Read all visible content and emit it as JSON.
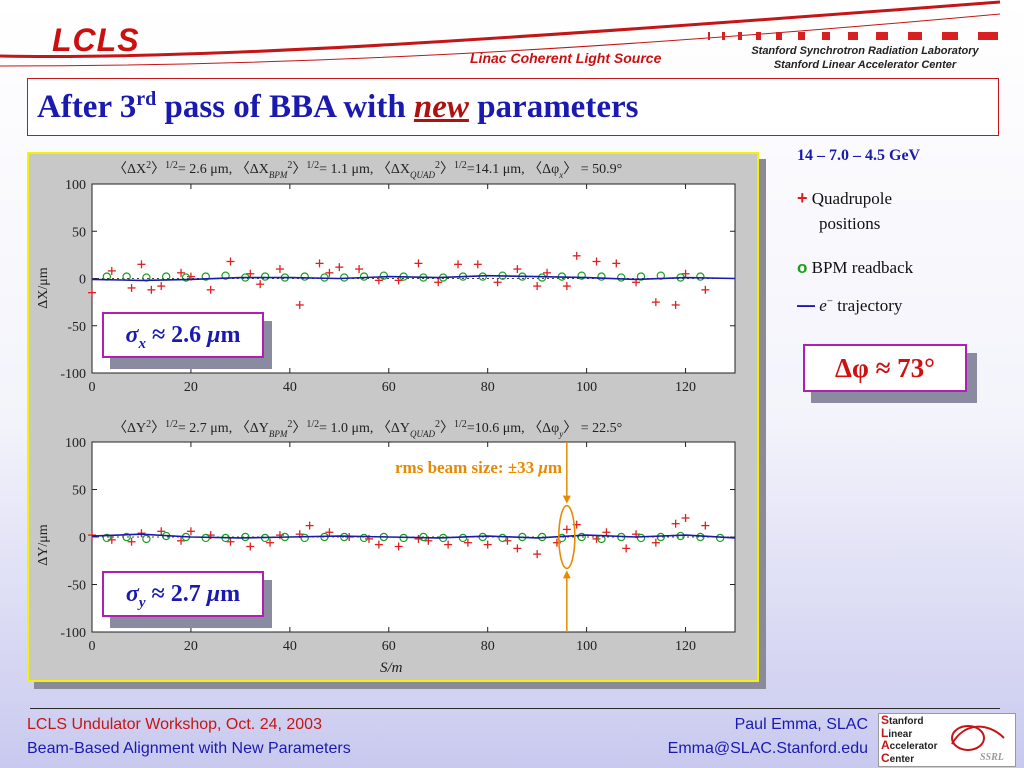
{
  "header": {
    "logo": "LCLS",
    "subtitle": "Linac Coherent Light Source",
    "lab_line1": "Stanford Synchrotron Radiation Laboratory",
    "lab_line2": "Stanford Linear Accelerator Center"
  },
  "title": {
    "part1": "After 3",
    "sup": "rd",
    "part2": " pass of BBA with ",
    "emph": "new",
    "part3": " parameters"
  },
  "legend": {
    "energy": "14 – 7.0  – 4.5 GeV",
    "items": [
      {
        "symbol": "+",
        "label": "Quadrupole",
        "label2": "positions",
        "color": "#e02020"
      },
      {
        "symbol": "o",
        "label": "BPM readback",
        "color": "#18a018"
      },
      {
        "symbol": "—",
        "label_italic": "e",
        "label_sup": "−",
        "label": " trajectory",
        "color": "#1a1ab0"
      }
    ]
  },
  "callouts": {
    "sigma_x_sym": "σ",
    "sigma_x_sub": "x",
    "sigma_x_val": " ≈ 2.6 ",
    "sigma_x_unit_mu": "μ",
    "sigma_x_unit_m": "m",
    "sigma_y_sym": "σ",
    "sigma_y_sub": "y",
    "sigma_y_val": " ≈ 2.7 ",
    "sigma_y_unit_mu": "μ",
    "sigma_y_unit_m": "m",
    "dphi": "Δφ ≈ 73°",
    "rms_beam_size": "rms beam size:   ±33 ",
    "rms_mu": "μ",
    "rms_m": "m"
  },
  "footer": {
    "left1": "LCLS Undulator Workshop, Oct. 24, 2003",
    "left2": "Beam-Based Alignment with New Parameters",
    "right1": "Paul Emma, SLAC",
    "right2": "Emma@SLAC.Stanford.edu",
    "slac_lines": [
      [
        "S",
        "tanford"
      ],
      [
        "L",
        "inear"
      ],
      [
        "A",
        "ccelerator"
      ],
      [
        "C",
        "enter"
      ]
    ],
    "slac_logo": "SSRL"
  },
  "colors": {
    "accent_red": "#c41616",
    "title_blue": "#1a1ab0",
    "quad": "#e02020",
    "bpm": "#18a018",
    "traj": "#1a1ab0",
    "rms": "#e88a00"
  },
  "chart_data": [
    {
      "type": "scatter",
      "panel": "x",
      "annotation": {
        "t1": "〈ΔX",
        "t1s": "2",
        "t1e": "〉",
        "t1p": "1/2",
        "t1v": "= 2.6 μm, ",
        "t2": "〈ΔX",
        "t2sub": "BPM",
        "t2s": "2",
        "t2e": "〉",
        "t2p": "1/2",
        "t2v": "= 1.1 μm, ",
        "t3": "〈ΔX",
        "t3sub": "QUAD",
        "t3s": "2",
        "t3e": "〉",
        "t3p": "1/2",
        "t3v": "=14.1 μm, ",
        "t4": "〈Δφ",
        "t4sub": "x",
        "t4e": "〉",
        "t4v": " =    50.9°"
      },
      "ylabel": "ΔX/μm",
      "xlim": [
        0,
        130
      ],
      "ylim": [
        -100,
        100
      ],
      "xticks": [
        0,
        20,
        40,
        60,
        80,
        100,
        120
      ],
      "yticks": [
        100,
        50,
        0,
        -50,
        -100
      ],
      "zero_line": "dotted",
      "series": [
        {
          "kind": "quad",
          "x": [
            0,
            4,
            8,
            10,
            12,
            14,
            18,
            20,
            24,
            28,
            32,
            34,
            38,
            42,
            46,
            48,
            50,
            54,
            58,
            62,
            66,
            70,
            74,
            78,
            82,
            86,
            90,
            92,
            96,
            98,
            102,
            106,
            110,
            114,
            118,
            120,
            124
          ],
          "y": [
            -15,
            8,
            -10,
            15,
            -12,
            -8,
            6,
            2,
            -12,
            18,
            5,
            -6,
            10,
            -28,
            16,
            6,
            12,
            10,
            -2,
            -2,
            16,
            -4,
            15,
            15,
            -4,
            10,
            -8,
            6,
            -8,
            24,
            18,
            16,
            -4,
            -25,
            -28,
            5,
            -12
          ]
        },
        {
          "kind": "bpm",
          "x": [
            3,
            7,
            11,
            15,
            19,
            23,
            27,
            31,
            35,
            39,
            43,
            47,
            51,
            55,
            59,
            63,
            67,
            71,
            75,
            79,
            83,
            87,
            91,
            95,
            99,
            103,
            107,
            111,
            115,
            119,
            123
          ],
          "y": [
            2,
            2,
            1,
            2,
            1,
            2,
            3,
            1,
            2,
            1,
            2,
            1,
            1,
            2,
            3,
            2,
            1,
            1,
            2,
            2,
            3,
            2,
            1,
            2,
            3,
            2,
            1,
            2,
            3,
            1,
            2
          ]
        },
        {
          "kind": "traj",
          "x": [
            0,
            10,
            20,
            30,
            40,
            50,
            60,
            70,
            80,
            90,
            100,
            110,
            120,
            130
          ],
          "y": [
            -1,
            -2,
            -1,
            1,
            1,
            0,
            2,
            1,
            3,
            2,
            1,
            -1,
            1,
            0
          ]
        }
      ]
    },
    {
      "type": "scatter",
      "panel": "y",
      "annotation": {
        "t1": "〈ΔY",
        "t1s": "2",
        "t1e": "〉",
        "t1p": "1/2",
        "t1v": "= 2.7 μm, ",
        "t2": "〈ΔY",
        "t2sub": "BPM",
        "t2s": "2",
        "t2e": "〉",
        "t2p": "1/2",
        "t2v": "= 1.0 μm, ",
        "t3": "〈ΔY",
        "t3sub": "QUAD",
        "t3s": "2",
        "t3e": "〉",
        "t3p": "1/2",
        "t3v": "=10.6 μm, ",
        "t4": "〈Δφ",
        "t4sub": "y",
        "t4e": "〉",
        "t4v": " =    22.5°"
      },
      "xlabel": "S/m",
      "ylabel": "ΔY/μm",
      "xlim": [
        0,
        130
      ],
      "ylim": [
        -100,
        100
      ],
      "xticks": [
        0,
        20,
        40,
        60,
        80,
        100,
        120
      ],
      "yticks": [
        100,
        50,
        0,
        -50,
        -100
      ],
      "zero_line": "dotted",
      "rms_marker_s": 96,
      "series": [
        {
          "kind": "quad",
          "x": [
            0,
            4,
            8,
            10,
            14,
            18,
            20,
            24,
            28,
            32,
            36,
            38,
            42,
            44,
            48,
            52,
            56,
            58,
            62,
            66,
            68,
            72,
            76,
            80,
            84,
            86,
            90,
            94,
            96,
            98,
            102,
            104,
            108,
            110,
            114,
            118,
            120,
            124
          ],
          "y": [
            2,
            -3,
            -5,
            4,
            6,
            -4,
            6,
            2,
            -5,
            -10,
            -6,
            2,
            3,
            12,
            5,
            0,
            -2,
            -8,
            -10,
            -2,
            -4,
            -8,
            -6,
            -8,
            -4,
            -12,
            -18,
            -6,
            8,
            13,
            -2,
            5,
            -12,
            3,
            -6,
            14,
            20,
            12
          ]
        },
        {
          "kind": "bpm",
          "x": [
            3,
            7,
            11,
            15,
            19,
            23,
            27,
            31,
            35,
            39,
            43,
            47,
            51,
            55,
            59,
            63,
            67,
            71,
            75,
            79,
            83,
            87,
            91,
            95,
            99,
            103,
            107,
            111,
            115,
            119,
            123,
            127
          ],
          "y": [
            -1,
            0,
            -2,
            1,
            0,
            -1,
            -1,
            0,
            -1,
            0,
            -1,
            0,
            0,
            -1,
            0,
            -1,
            0,
            -1,
            -1,
            0,
            -1,
            0,
            0,
            -1,
            0,
            -2,
            0,
            -1,
            0,
            1,
            0,
            -1
          ]
        },
        {
          "kind": "traj",
          "x": [
            0,
            10,
            20,
            30,
            40,
            50,
            60,
            70,
            80,
            90,
            100,
            110,
            120,
            130
          ],
          "y": [
            1,
            3,
            0,
            -1,
            0,
            1,
            0,
            -1,
            1,
            -1,
            2,
            0,
            2,
            -1
          ]
        }
      ]
    }
  ]
}
